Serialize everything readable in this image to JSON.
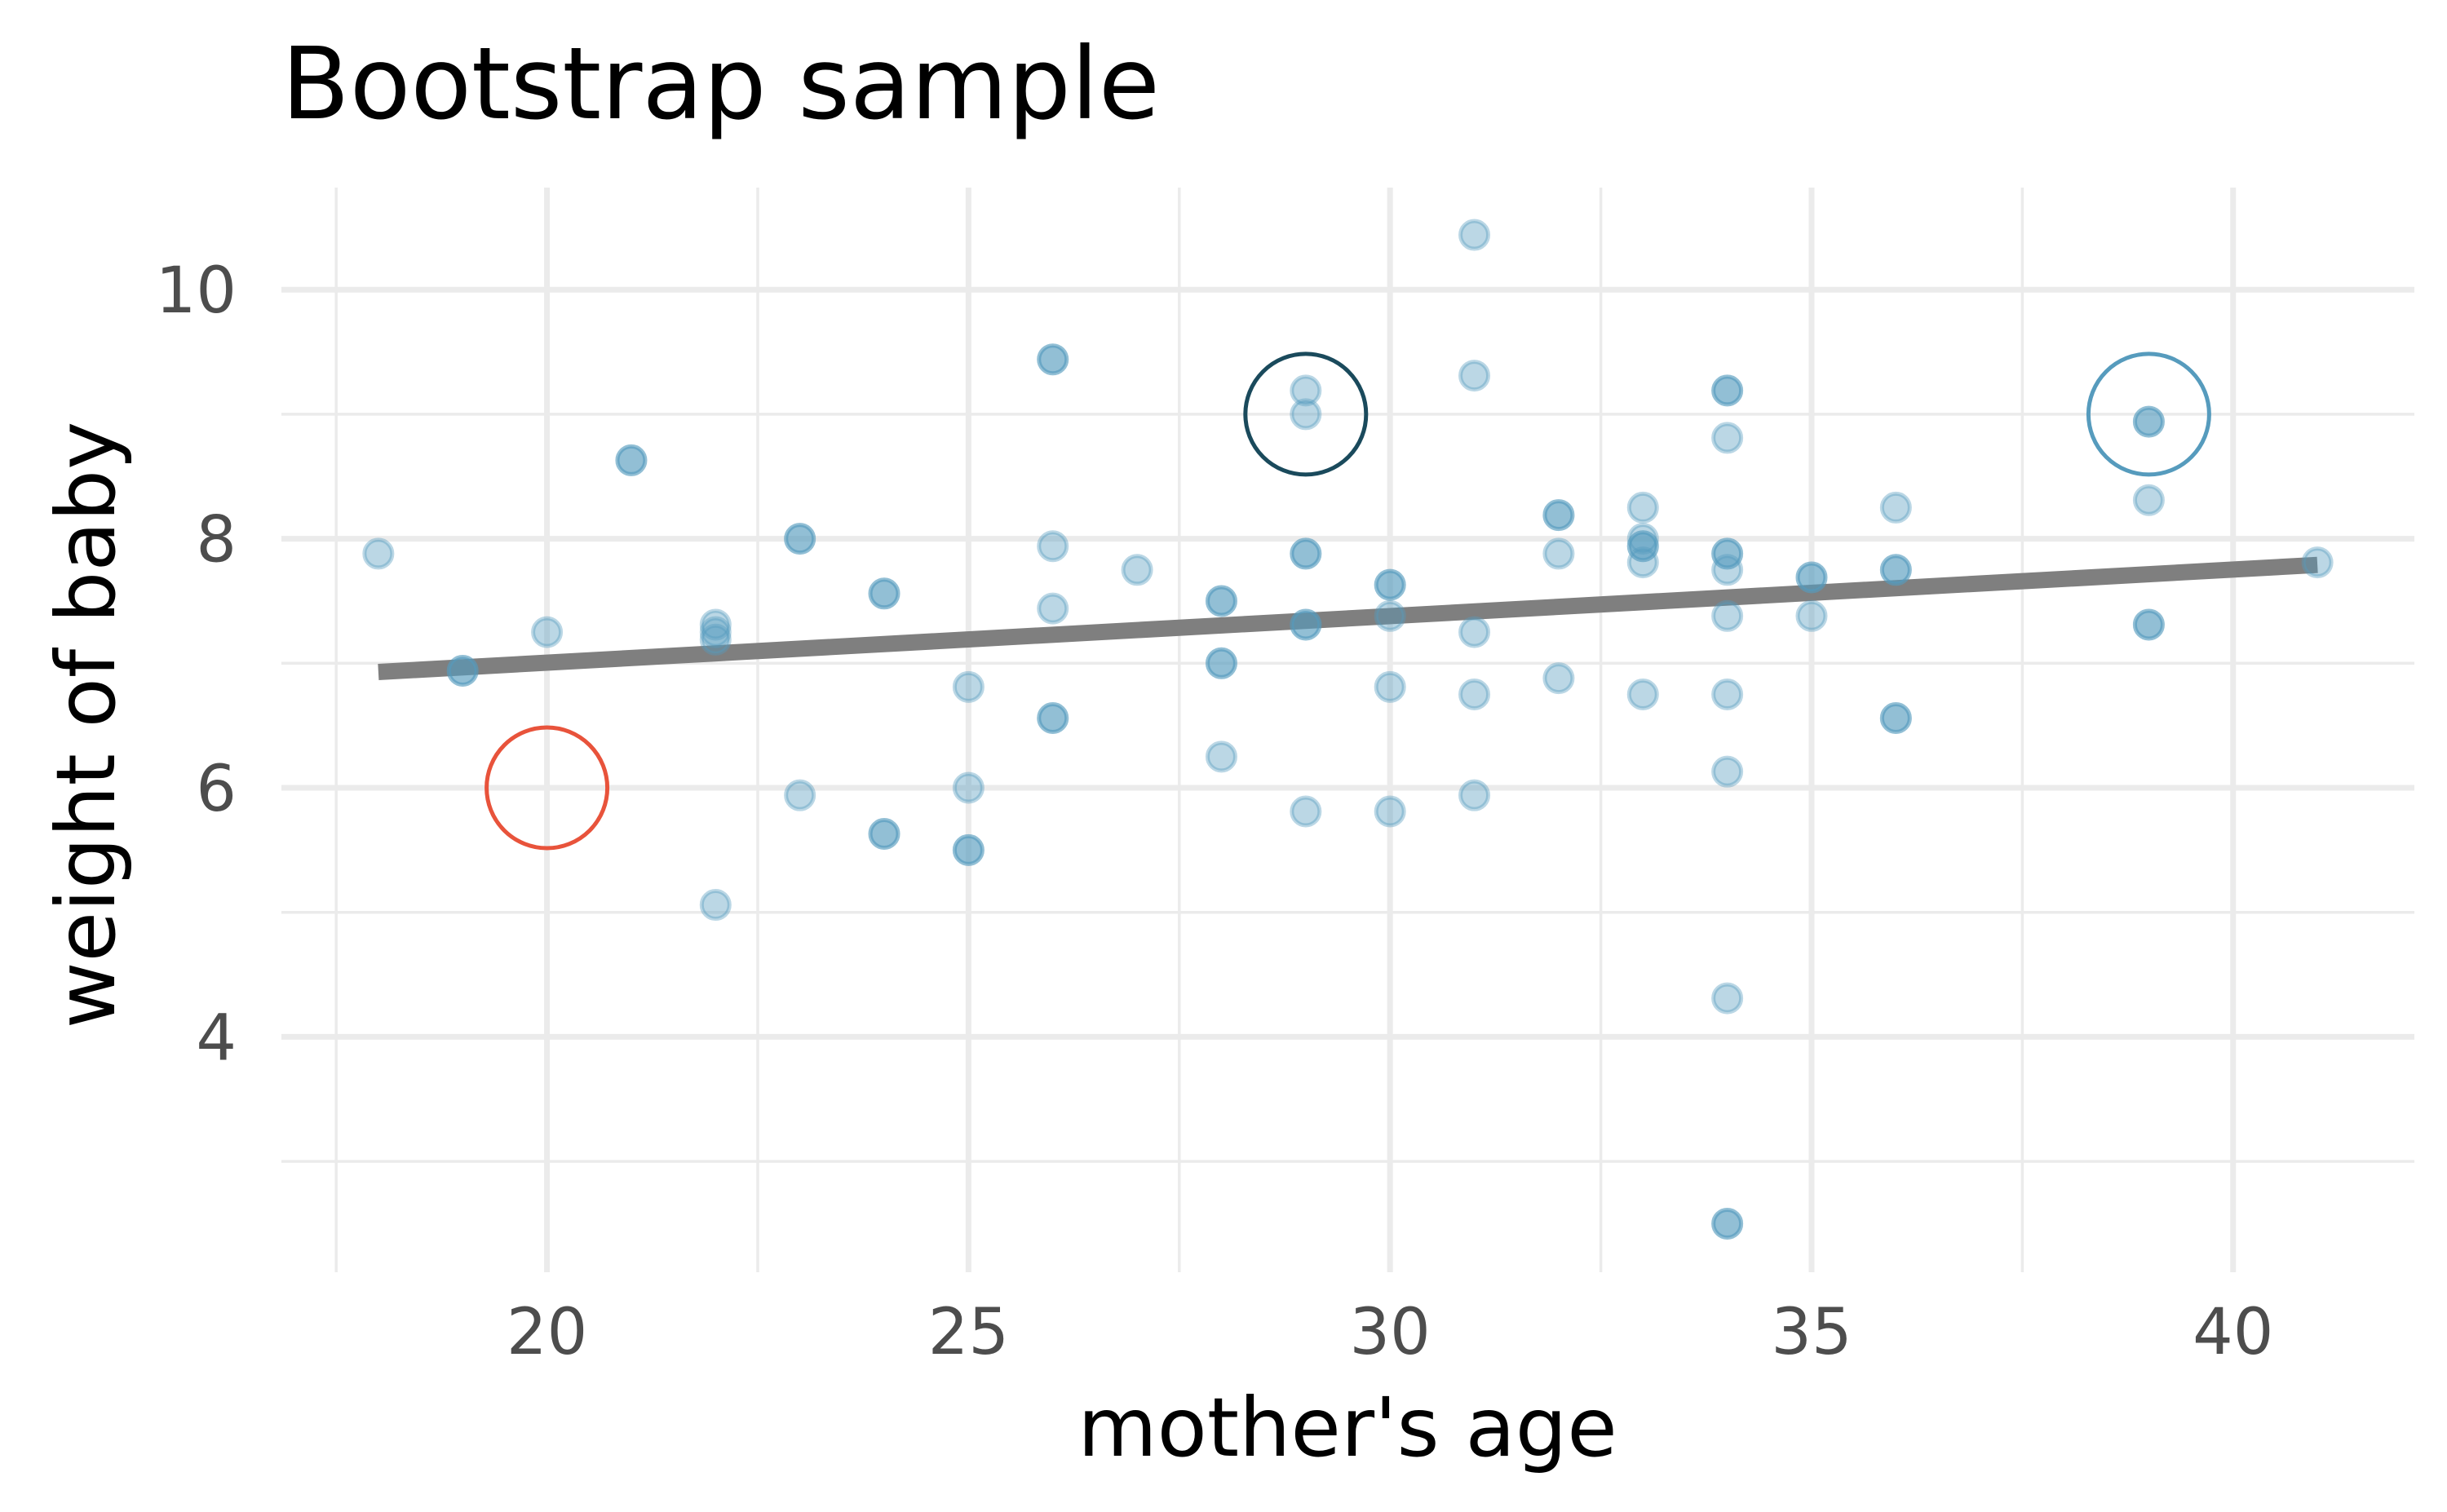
{
  "chart_data": {
    "type": "scatter",
    "title": "Bootstrap sample",
    "xlabel": "mother's age",
    "ylabel": "weight of baby",
    "xlim": [
      16.85,
      42.15
    ],
    "ylim": [
      2.11,
      10.82
    ],
    "xticks": [
      20,
      25,
      30,
      35,
      40
    ],
    "yticks": [
      4,
      6,
      8,
      10
    ],
    "xminor": [
      17.5,
      22.5,
      27.5,
      32.5,
      37.5
    ],
    "yminor": [
      3,
      5,
      7,
      9
    ],
    "grid": true,
    "point_color": "#569bbd",
    "points": [
      [
        18,
        7.88
      ],
      [
        19,
        6.94
      ],
      [
        19,
        6.94
      ],
      [
        20,
        7.25
      ],
      [
        21,
        8.63
      ],
      [
        21,
        8.63
      ],
      [
        22,
        7.31
      ],
      [
        22,
        7.25
      ],
      [
        22,
        7.19
      ],
      [
        22,
        5.06
      ],
      [
        23,
        8.0
      ],
      [
        23,
        8.0
      ],
      [
        23,
        5.94
      ],
      [
        24,
        7.56
      ],
      [
        24,
        7.56
      ],
      [
        24,
        5.63
      ],
      [
        24,
        5.63
      ],
      [
        25,
        6.81
      ],
      [
        25,
        6.0
      ],
      [
        25,
        5.5
      ],
      [
        25,
        5.5
      ],
      [
        26,
        9.44
      ],
      [
        26,
        9.44
      ],
      [
        26,
        7.94
      ],
      [
        26,
        7.44
      ],
      [
        26,
        6.56
      ],
      [
        26,
        6.56
      ],
      [
        27,
        7.75
      ],
      [
        28,
        7.5
      ],
      [
        28,
        7.5
      ],
      [
        28,
        7.0
      ],
      [
        28,
        7.0
      ],
      [
        28,
        6.25
      ],
      [
        29,
        9.19
      ],
      [
        29,
        9.0
      ],
      [
        29,
        7.88
      ],
      [
        29,
        7.88
      ],
      [
        29,
        7.31
      ],
      [
        29,
        7.31
      ],
      [
        29,
        5.81
      ],
      [
        30,
        7.63
      ],
      [
        30,
        7.63
      ],
      [
        30,
        7.38
      ],
      [
        30,
        6.81
      ],
      [
        30,
        5.81
      ],
      [
        31,
        10.44
      ],
      [
        31,
        9.31
      ],
      [
        31,
        7.25
      ],
      [
        31,
        6.75
      ],
      [
        31,
        5.94
      ],
      [
        32,
        8.19
      ],
      [
        32,
        8.19
      ],
      [
        32,
        7.88
      ],
      [
        32,
        6.88
      ],
      [
        33,
        8.25
      ],
      [
        33,
        8.0
      ],
      [
        33,
        7.94
      ],
      [
        33,
        7.94
      ],
      [
        33,
        7.81
      ],
      [
        33,
        6.75
      ],
      [
        34,
        9.19
      ],
      [
        34,
        9.19
      ],
      [
        34,
        8.81
      ],
      [
        34,
        7.88
      ],
      [
        34,
        7.88
      ],
      [
        34,
        7.75
      ],
      [
        34,
        7.38
      ],
      [
        34,
        6.75
      ],
      [
        34,
        6.13
      ],
      [
        34,
        4.31
      ],
      [
        34,
        2.5
      ],
      [
        34,
        2.5
      ],
      [
        35,
        7.69
      ],
      [
        35,
        7.69
      ],
      [
        35,
        7.38
      ],
      [
        36,
        8.25
      ],
      [
        36,
        7.75
      ],
      [
        36,
        7.75
      ],
      [
        36,
        6.56
      ],
      [
        36,
        6.56
      ],
      [
        39,
        8.94
      ],
      [
        39,
        8.94
      ],
      [
        39,
        8.31
      ],
      [
        39,
        7.31
      ],
      [
        39,
        7.31
      ],
      [
        41,
        7.81
      ]
    ],
    "fit_line": {
      "x": [
        18,
        41
      ],
      "y": [
        6.93,
        7.79
      ],
      "color": "#7f7f7f"
    },
    "highlights": [
      {
        "x": 20,
        "y": 6,
        "color": "#e8533b"
      },
      {
        "x": 29,
        "y": 9,
        "color": "#1a4a5c"
      },
      {
        "x": 39,
        "y": 9,
        "color": "#569bbd"
      }
    ]
  }
}
